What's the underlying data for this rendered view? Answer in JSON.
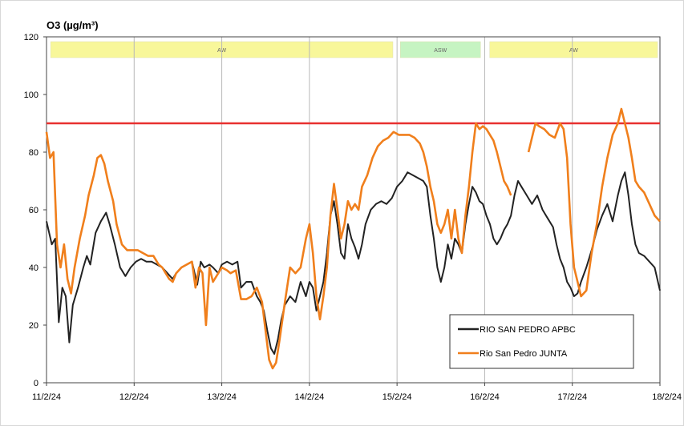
{
  "chart_data": {
    "type": "line",
    "title": "O3  (µg/m³)",
    "xlabel": "",
    "ylabel": "",
    "x_ticks": [
      "11/2/24",
      "12/2/24",
      "13/2/24",
      "14/2/24",
      "15/2/24",
      "16/2/24",
      "17/2/24",
      "18/2/24"
    ],
    "xlim": [
      0,
      7
    ],
    "ylim": [
      0,
      120
    ],
    "y_ticks": [
      0,
      20,
      40,
      60,
      80,
      100,
      120
    ],
    "grid": "vertical",
    "legend_position": "bottom-right",
    "threshold": {
      "value": 90,
      "color": "#e8302f"
    },
    "bands": [
      {
        "label": "AW",
        "x0": 0.02,
        "x1": 3.98,
        "color": "#f8f79a"
      },
      {
        "label": "ASW",
        "x0": 4.01,
        "x1": 4.98,
        "color": "#c6f4c2"
      },
      {
        "label": "AW",
        "x0": 5.03,
        "x1": 7.0,
        "color": "#f8f79a"
      }
    ],
    "series": [
      {
        "name": "RIO SAN PEDRO APBC",
        "color": "#222222",
        "points": [
          [
            0.0,
            56
          ],
          [
            0.06,
            48
          ],
          [
            0.1,
            50
          ],
          [
            0.14,
            21
          ],
          [
            0.18,
            33
          ],
          [
            0.22,
            30
          ],
          [
            0.26,
            14
          ],
          [
            0.3,
            27
          ],
          [
            0.36,
            33
          ],
          [
            0.42,
            40
          ],
          [
            0.46,
            44
          ],
          [
            0.5,
            41
          ],
          [
            0.56,
            52
          ],
          [
            0.62,
            56
          ],
          [
            0.68,
            59
          ],
          [
            0.72,
            55
          ],
          [
            0.78,
            48
          ],
          [
            0.84,
            40
          ],
          [
            0.9,
            37
          ],
          [
            0.96,
            40
          ],
          [
            1.02,
            42
          ],
          [
            1.08,
            43
          ],
          [
            1.14,
            42
          ],
          [
            1.2,
            42
          ],
          [
            1.26,
            41
          ],
          [
            1.32,
            40
          ],
          [
            1.38,
            38
          ],
          [
            1.44,
            36
          ],
          [
            1.48,
            38
          ],
          [
            1.54,
            40
          ],
          [
            1.6,
            41
          ],
          [
            1.66,
            42
          ],
          [
            1.72,
            34
          ],
          [
            1.76,
            42
          ],
          [
            1.8,
            40
          ],
          [
            1.86,
            41
          ],
          [
            1.9,
            40
          ],
          [
            1.96,
            38
          ],
          [
            2.0,
            41
          ],
          [
            2.06,
            42
          ],
          [
            2.12,
            41
          ],
          [
            2.18,
            42
          ],
          [
            2.22,
            33
          ],
          [
            2.28,
            35
          ],
          [
            2.34,
            35
          ],
          [
            2.4,
            30
          ],
          [
            2.44,
            28
          ],
          [
            2.48,
            25
          ],
          [
            2.52,
            18
          ],
          [
            2.56,
            12
          ],
          [
            2.6,
            10
          ],
          [
            2.64,
            15
          ],
          [
            2.68,
            22
          ],
          [
            2.72,
            27
          ],
          [
            2.78,
            30
          ],
          [
            2.84,
            28
          ],
          [
            2.9,
            35
          ],
          [
            2.96,
            30
          ],
          [
            3.0,
            35
          ],
          [
            3.04,
            33
          ],
          [
            3.08,
            25
          ],
          [
            3.12,
            30
          ],
          [
            3.16,
            35
          ],
          [
            3.2,
            45
          ],
          [
            3.24,
            58
          ],
          [
            3.28,
            63
          ],
          [
            3.32,
            55
          ],
          [
            3.36,
            45
          ],
          [
            3.4,
            43
          ],
          [
            3.44,
            55
          ],
          [
            3.48,
            50
          ],
          [
            3.52,
            47
          ],
          [
            3.56,
            43
          ],
          [
            3.6,
            48
          ],
          [
            3.64,
            55
          ],
          [
            3.7,
            60
          ],
          [
            3.76,
            62
          ],
          [
            3.82,
            63
          ],
          [
            3.88,
            62
          ],
          [
            3.94,
            64
          ],
          [
            4.0,
            68
          ],
          [
            4.06,
            70
          ],
          [
            4.12,
            73
          ],
          [
            4.18,
            72
          ],
          [
            4.24,
            71
          ],
          [
            4.3,
            70
          ],
          [
            4.34,
            68
          ],
          [
            4.38,
            58
          ],
          [
            4.42,
            50
          ],
          [
            4.46,
            40
          ],
          [
            4.5,
            35
          ],
          [
            4.54,
            40
          ],
          [
            4.58,
            48
          ],
          [
            4.62,
            43
          ],
          [
            4.66,
            50
          ],
          [
            4.7,
            48
          ],
          [
            4.74,
            45
          ],
          [
            4.78,
            55
          ],
          [
            4.82,
            62
          ],
          [
            4.86,
            68
          ],
          [
            4.9,
            66
          ],
          [
            4.94,
            63
          ],
          [
            4.98,
            62
          ],
          [
            5.02,
            58
          ],
          [
            5.06,
            55
          ],
          [
            5.1,
            50
          ],
          [
            5.14,
            48
          ],
          [
            5.18,
            50
          ],
          [
            5.22,
            53
          ],
          [
            5.26,
            55
          ],
          [
            5.3,
            58
          ],
          [
            5.34,
            65
          ],
          [
            5.38,
            70
          ],
          [
            5.42,
            68
          ],
          [
            5.46,
            66
          ],
          [
            5.5,
            64
          ],
          [
            5.54,
            62
          ],
          [
            5.6,
            65
          ],
          [
            5.66,
            60
          ],
          [
            5.72,
            57
          ],
          [
            5.78,
            54
          ],
          [
            5.82,
            48
          ],
          [
            5.86,
            43
          ],
          [
            5.9,
            40
          ],
          [
            5.94,
            35
          ],
          [
            5.98,
            33
          ],
          [
            6.02,
            30
          ],
          [
            6.06,
            31
          ],
          [
            6.1,
            35
          ],
          [
            6.16,
            40
          ],
          [
            6.22,
            46
          ],
          [
            6.28,
            53
          ],
          [
            6.34,
            58
          ],
          [
            6.4,
            62
          ],
          [
            6.46,
            56
          ],
          [
            6.52,
            65
          ],
          [
            6.56,
            70
          ],
          [
            6.6,
            73
          ],
          [
            6.64,
            65
          ],
          [
            6.68,
            55
          ],
          [
            6.72,
            48
          ],
          [
            6.76,
            45
          ],
          [
            6.82,
            44
          ],
          [
            6.88,
            42
          ],
          [
            6.94,
            40
          ],
          [
            7.0,
            32
          ]
        ]
      },
      {
        "name": "Rio San Pedro JUNTA",
        "color": "#f07f1c",
        "points": [
          [
            0.0,
            87
          ],
          [
            0.04,
            78
          ],
          [
            0.08,
            80
          ],
          [
            0.12,
            48
          ],
          [
            0.16,
            40
          ],
          [
            0.2,
            48
          ],
          [
            0.24,
            36
          ],
          [
            0.28,
            31
          ],
          [
            0.32,
            40
          ],
          [
            0.38,
            50
          ],
          [
            0.44,
            58
          ],
          [
            0.48,
            65
          ],
          [
            0.54,
            72
          ],
          [
            0.58,
            78
          ],
          [
            0.62,
            79
          ],
          [
            0.66,
            76
          ],
          [
            0.7,
            70
          ],
          [
            0.76,
            63
          ],
          [
            0.8,
            55
          ],
          [
            0.86,
            48
          ],
          [
            0.92,
            46
          ],
          [
            0.98,
            46
          ],
          [
            1.04,
            46
          ],
          [
            1.1,
            45
          ],
          [
            1.16,
            44
          ],
          [
            1.22,
            44
          ],
          [
            1.28,
            41
          ],
          [
            1.32,
            40
          ],
          [
            1.36,
            38
          ],
          [
            1.4,
            36
          ],
          [
            1.44,
            35
          ],
          [
            1.48,
            38
          ],
          [
            1.54,
            40
          ],
          [
            1.6,
            41
          ],
          [
            1.66,
            42
          ],
          [
            1.7,
            33
          ],
          [
            1.74,
            40
          ],
          [
            1.78,
            38
          ],
          [
            1.82,
            20
          ],
          [
            1.86,
            40
          ],
          [
            1.9,
            35
          ],
          [
            1.96,
            38
          ],
          [
            2.0,
            40
          ],
          [
            2.06,
            39
          ],
          [
            2.1,
            38
          ],
          [
            2.16,
            39
          ],
          [
            2.22,
            29
          ],
          [
            2.28,
            29
          ],
          [
            2.34,
            30
          ],
          [
            2.4,
            33
          ],
          [
            2.46,
            28
          ],
          [
            2.5,
            18
          ],
          [
            2.54,
            8
          ],
          [
            2.58,
            5
          ],
          [
            2.62,
            7
          ],
          [
            2.66,
            15
          ],
          [
            2.72,
            28
          ],
          [
            2.78,
            40
          ],
          [
            2.84,
            38
          ],
          [
            2.9,
            40
          ],
          [
            2.96,
            50
          ],
          [
            3.0,
            55
          ],
          [
            3.04,
            45
          ],
          [
            3.08,
            30
          ],
          [
            3.12,
            22
          ],
          [
            3.16,
            30
          ],
          [
            3.2,
            40
          ],
          [
            3.24,
            58
          ],
          [
            3.28,
            69
          ],
          [
            3.32,
            60
          ],
          [
            3.36,
            50
          ],
          [
            3.4,
            55
          ],
          [
            3.44,
            63
          ],
          [
            3.48,
            60
          ],
          [
            3.52,
            62
          ],
          [
            3.56,
            60
          ],
          [
            3.6,
            68
          ],
          [
            3.66,
            72
          ],
          [
            3.72,
            78
          ],
          [
            3.78,
            82
          ],
          [
            3.84,
            84
          ],
          [
            3.9,
            85
          ],
          [
            3.96,
            87
          ],
          [
            4.02,
            86
          ],
          [
            4.08,
            86
          ],
          [
            4.14,
            86
          ],
          [
            4.2,
            85
          ],
          [
            4.26,
            83
          ],
          [
            4.3,
            80
          ],
          [
            4.34,
            75
          ],
          [
            4.38,
            68
          ],
          [
            4.42,
            63
          ],
          [
            4.46,
            55
          ],
          [
            4.5,
            52
          ],
          [
            4.54,
            55
          ],
          [
            4.58,
            60
          ],
          [
            4.62,
            50
          ],
          [
            4.66,
            60
          ],
          [
            4.7,
            50
          ],
          [
            4.74,
            45
          ],
          [
            4.78,
            58
          ],
          [
            4.82,
            68
          ],
          [
            4.86,
            80
          ],
          [
            4.9,
            90
          ],
          [
            4.94,
            88
          ],
          [
            4.98,
            89
          ],
          [
            5.02,
            88
          ],
          [
            5.06,
            86
          ],
          [
            5.1,
            84
          ],
          [
            5.14,
            80
          ],
          [
            5.18,
            75
          ],
          [
            5.22,
            70
          ],
          [
            5.26,
            68
          ],
          [
            5.3,
            65
          ],
          [
            5.34,
            null
          ],
          [
            5.5,
            80
          ],
          [
            5.54,
            85
          ],
          [
            5.58,
            90
          ],
          [
            5.62,
            89
          ],
          [
            5.68,
            88
          ],
          [
            5.74,
            86
          ],
          [
            5.8,
            85
          ],
          [
            5.86,
            90
          ],
          [
            5.9,
            88
          ],
          [
            5.94,
            78
          ],
          [
            5.98,
            55
          ],
          [
            6.02,
            40
          ],
          [
            6.06,
            35
          ],
          [
            6.1,
            30
          ],
          [
            6.16,
            32
          ],
          [
            6.22,
            45
          ],
          [
            6.28,
            55
          ],
          [
            6.34,
            68
          ],
          [
            6.4,
            78
          ],
          [
            6.46,
            86
          ],
          [
            6.52,
            90
          ],
          [
            6.56,
            95
          ],
          [
            6.6,
            90
          ],
          [
            6.64,
            85
          ],
          [
            6.68,
            78
          ],
          [
            6.72,
            70
          ],
          [
            6.76,
            68
          ],
          [
            6.82,
            66
          ],
          [
            6.88,
            62
          ],
          [
            6.94,
            58
          ],
          [
            7.0,
            56
          ]
        ]
      }
    ]
  }
}
